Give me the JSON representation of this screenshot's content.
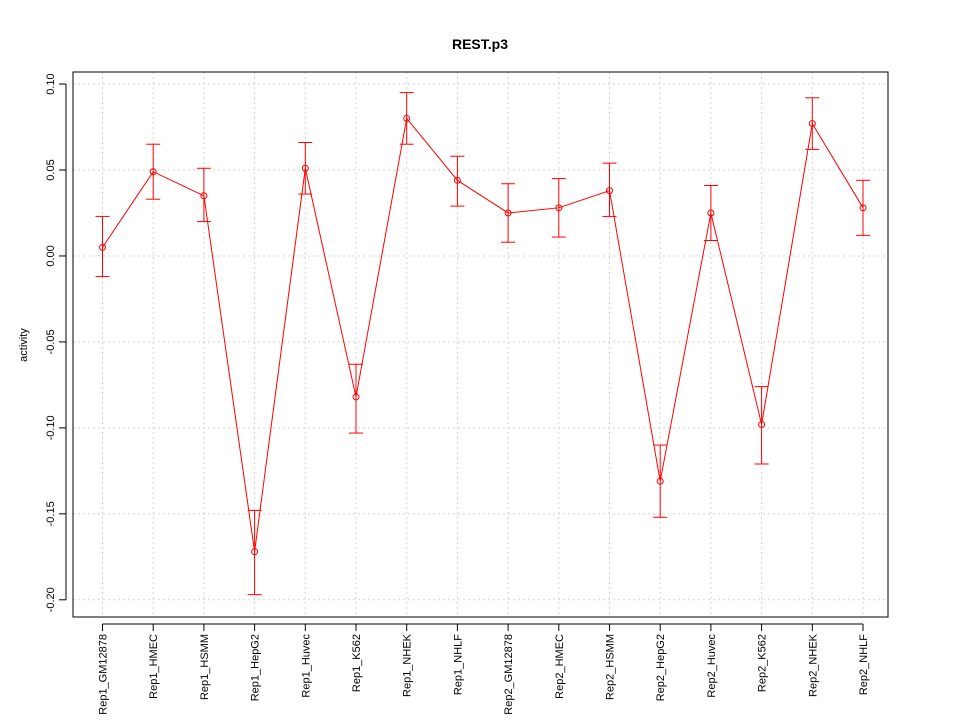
{
  "chart_data": {
    "type": "line",
    "title": "REST.p3",
    "xlabel": "",
    "ylabel": "activity",
    "ylim": [
      -0.21,
      0.107
    ],
    "yticks": [
      0.1,
      0.05,
      0.0,
      -0.05,
      -0.1,
      -0.15,
      -0.2
    ],
    "ytick_labels": [
      "0.10",
      "0.05",
      "0.00",
      "-0.05",
      "-0.10",
      "-0.15",
      "-0.20"
    ],
    "grid": true,
    "color": "#ff0000",
    "categories": [
      "Rep1_GM12878",
      "Rep1_HMEC",
      "Rep1_HSMM",
      "Rep1_HepG2",
      "Rep1_Huvec",
      "Rep1_K562",
      "Rep1_NHEK",
      "Rep1_NHLF",
      "Rep2_GM12878",
      "Rep2_HMEC",
      "Rep2_HSMM",
      "Rep2_HepG2",
      "Rep2_Huvec",
      "Rep2_K562",
      "Rep2_NHEK",
      "Rep2_NHLF"
    ],
    "series": [
      {
        "name": "activity",
        "values": [
          0.005,
          0.049,
          0.035,
          -0.172,
          0.051,
          -0.082,
          0.08,
          0.044,
          0.025,
          0.028,
          0.038,
          -0.131,
          0.025,
          -0.098,
          0.077,
          0.028
        ],
        "err_low": [
          -0.012,
          0.033,
          0.02,
          -0.197,
          0.036,
          -0.103,
          0.065,
          0.029,
          0.008,
          0.011,
          0.023,
          -0.152,
          0.009,
          -0.121,
          0.062,
          0.012
        ],
        "err_high": [
          0.023,
          0.065,
          0.051,
          -0.148,
          0.066,
          -0.063,
          0.095,
          0.058,
          0.042,
          0.045,
          0.054,
          -0.11,
          0.041,
          -0.076,
          0.092,
          0.044
        ]
      }
    ]
  }
}
